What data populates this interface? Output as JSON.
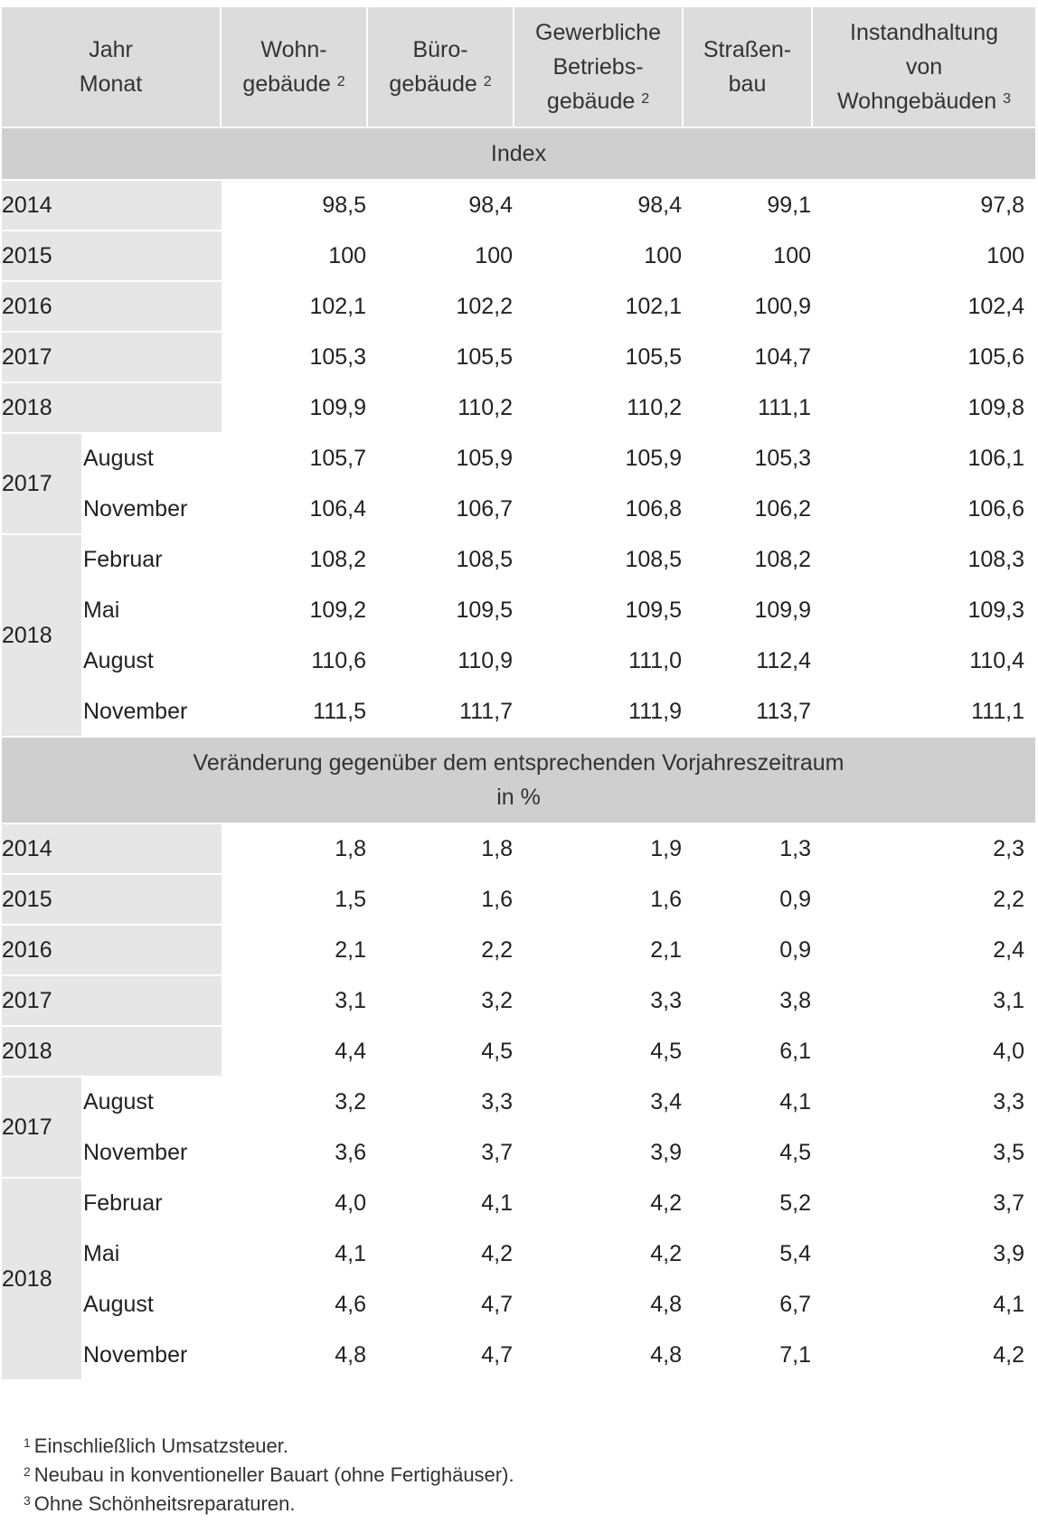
{
  "header": {
    "col_year_month": [
      "Jahr",
      "Monat"
    ],
    "col1": {
      "lines": [
        "Wohn-",
        "gebäude"
      ],
      "note": "2"
    },
    "col2": {
      "lines": [
        "Büro-",
        "gebäude"
      ],
      "note": "2"
    },
    "col3": {
      "lines": [
        "Gewerbliche",
        "Betriebs-",
        "gebäude"
      ],
      "note": "2"
    },
    "col4": {
      "lines": [
        "Straßen-",
        "bau"
      ],
      "note": ""
    },
    "col5": {
      "lines": [
        "Instandhaltung",
        "von",
        "Wohngebäuden"
      ],
      "note": "3"
    }
  },
  "sections": [
    {
      "title_lines": [
        "Index"
      ],
      "annual": [
        {
          "year": "2014",
          "values": [
            "98,5",
            "98,4",
            "98,4",
            "99,1",
            "97,8"
          ]
        },
        {
          "year": "2015",
          "values": [
            "100",
            "100",
            "100",
            "100",
            "100"
          ]
        },
        {
          "year": "2016",
          "values": [
            "102,1",
            "102,2",
            "102,1",
            "100,9",
            "102,4"
          ]
        },
        {
          "year": "2017",
          "values": [
            "105,3",
            "105,5",
            "105,5",
            "104,7",
            "105,6"
          ]
        },
        {
          "year": "2018",
          "values": [
            "109,9",
            "110,2",
            "110,2",
            "111,1",
            "109,8"
          ]
        }
      ],
      "monthly": [
        {
          "year": "2017",
          "rows": [
            {
              "month": "August",
              "values": [
                "105,7",
                "105,9",
                "105,9",
                "105,3",
                "106,1"
              ]
            },
            {
              "month": "November",
              "values": [
                "106,4",
                "106,7",
                "106,8",
                "106,2",
                "106,6"
              ]
            }
          ]
        },
        {
          "year": "2018",
          "rows": [
            {
              "month": "Februar",
              "values": [
                "108,2",
                "108,5",
                "108,5",
                "108,2",
                "108,3"
              ]
            },
            {
              "month": "Mai",
              "values": [
                "109,2",
                "109,5",
                "109,5",
                "109,9",
                "109,3"
              ]
            },
            {
              "month": "August",
              "values": [
                "110,6",
                "110,9",
                "111,0",
                "112,4",
                "110,4"
              ]
            },
            {
              "month": "November",
              "values": [
                "111,5",
                "111,7",
                "111,9",
                "113,7",
                "111,1"
              ]
            }
          ]
        }
      ]
    },
    {
      "title_lines": [
        "Veränderung gegenüber dem entsprechenden Vorjahreszeitraum",
        "in %"
      ],
      "annual": [
        {
          "year": "2014",
          "values": [
            "1,8",
            "1,8",
            "1,9",
            "1,3",
            "2,3"
          ]
        },
        {
          "year": "2015",
          "values": [
            "1,5",
            "1,6",
            "1,6",
            "0,9",
            "2,2"
          ]
        },
        {
          "year": "2016",
          "values": [
            "2,1",
            "2,2",
            "2,1",
            "0,9",
            "2,4"
          ]
        },
        {
          "year": "2017",
          "values": [
            "3,1",
            "3,2",
            "3,3",
            "3,8",
            "3,1"
          ]
        },
        {
          "year": "2018",
          "values": [
            "4,4",
            "4,5",
            "4,5",
            "6,1",
            "4,0"
          ]
        }
      ],
      "monthly": [
        {
          "year": "2017",
          "rows": [
            {
              "month": "August",
              "values": [
                "3,2",
                "3,3",
                "3,4",
                "4,1",
                "3,3"
              ]
            },
            {
              "month": "November",
              "values": [
                "3,6",
                "3,7",
                "3,9",
                "4,5",
                "3,5"
              ]
            }
          ]
        },
        {
          "year": "2018",
          "rows": [
            {
              "month": "Februar",
              "values": [
                "4,0",
                "4,1",
                "4,2",
                "5,2",
                "3,7"
              ]
            },
            {
              "month": "Mai",
              "values": [
                "4,1",
                "4,2",
                "4,2",
                "5,4",
                "3,9"
              ]
            },
            {
              "month": "August",
              "values": [
                "4,6",
                "4,7",
                "4,8",
                "6,7",
                "4,1"
              ]
            },
            {
              "month": "November",
              "values": [
                "4,8",
                "4,7",
                "4,8",
                "7,1",
                "4,2"
              ]
            }
          ]
        }
      ]
    }
  ],
  "footnotes": [
    {
      "num": "1",
      "text": "Einschließlich Umsatzsteuer."
    },
    {
      "num": "2",
      "text": "Neubau in konventioneller Bauart (ohne Fertighäuser)."
    },
    {
      "num": "3",
      "text": "Ohne Schönheitsreparaturen."
    }
  ]
}
